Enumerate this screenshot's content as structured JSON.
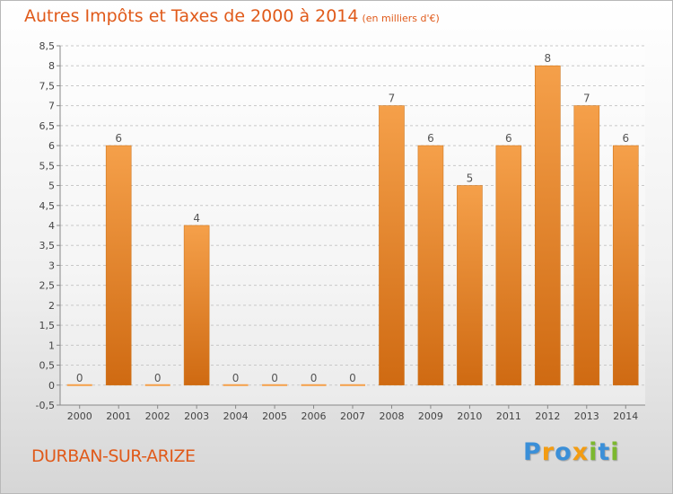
{
  "chart_data": {
    "type": "bar",
    "title": "Autres Impôts et Taxes de 2000 à 2014",
    "subtitle": "(en milliers d'€)",
    "categories": [
      "2000",
      "2001",
      "2002",
      "2003",
      "2004",
      "2005",
      "2006",
      "2007",
      "2008",
      "2009",
      "2010",
      "2011",
      "2012",
      "2013",
      "2014"
    ],
    "values": [
      0,
      6,
      0,
      4,
      0,
      0,
      0,
      0,
      7,
      6,
      5,
      6,
      8,
      7,
      6
    ],
    "data_labels": [
      "0",
      "6",
      "0",
      "4",
      "0",
      "0",
      "0",
      "0",
      "7",
      "6",
      "5",
      "6",
      "8",
      "7",
      "6"
    ],
    "yticks": [
      "-0,5",
      "0",
      "0,5",
      "1",
      "1,5",
      "2",
      "2,5",
      "3",
      "3,5",
      "4",
      "4,5",
      "5",
      "5,5",
      "6",
      "6,5",
      "7",
      "7,5",
      "8",
      "8,5"
    ],
    "ylim": [
      -0.5,
      8.5
    ],
    "xlabel": "",
    "ylabel": "",
    "grid": true,
    "bar_color": "#f5a04a",
    "bar_color_dark": "#cf6a12"
  },
  "footer": {
    "commune": "DURBAN-SUR-ARIZE",
    "logo_letters": [
      {
        "ch": "P",
        "color": "#3a8fd8"
      },
      {
        "ch": "r",
        "color": "#f39c12"
      },
      {
        "ch": "o",
        "color": "#3a8fd8"
      },
      {
        "ch": "x",
        "color": "#f39c12"
      },
      {
        "ch": "i",
        "color": "#7cb82f"
      },
      {
        "ch": "t",
        "color": "#3a8fd8"
      },
      {
        "ch": "i",
        "color": "#7cb82f"
      }
    ]
  }
}
